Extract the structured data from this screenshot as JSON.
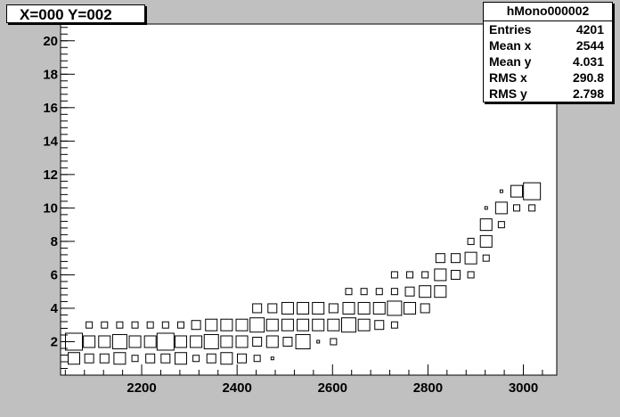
{
  "title": "X=000 Y=002",
  "stats": {
    "name": "hMono000002",
    "rows": [
      {
        "label": "Entries",
        "value": "4201"
      },
      {
        "label": "Mean x",
        "value": "2544"
      },
      {
        "label": "Mean y",
        "value": "4.031"
      },
      {
        "label": "RMS x",
        "value": "290.8"
      },
      {
        "label": "RMS y",
        "value": "2.798"
      }
    ]
  },
  "chart_data": {
    "type": "box",
    "xlim": [
      2030,
      3070
    ],
    "ylim": [
      0,
      21
    ],
    "xticks": [
      2200,
      2400,
      2600,
      2800,
      3000
    ],
    "yticks": [
      2,
      4,
      6,
      8,
      10,
      12,
      14,
      16,
      18,
      20
    ],
    "bin_width_x": 32,
    "bin_height_y": 1,
    "bins": [
      [
        2058,
        1,
        3
      ],
      [
        2090,
        1,
        2
      ],
      [
        2122,
        1,
        2
      ],
      [
        2154,
        1,
        3
      ],
      [
        2186,
        1,
        1
      ],
      [
        2218,
        1,
        2
      ],
      [
        2250,
        1,
        2
      ],
      [
        2282,
        1,
        3
      ],
      [
        2314,
        1,
        1
      ],
      [
        2346,
        1,
        2
      ],
      [
        2378,
        1,
        3
      ],
      [
        2410,
        1,
        2
      ],
      [
        2442,
        1,
        1
      ],
      [
        2474,
        1,
        0
      ],
      [
        2058,
        2,
        5
      ],
      [
        2090,
        2,
        3
      ],
      [
        2122,
        2,
        3
      ],
      [
        2154,
        2,
        4
      ],
      [
        2186,
        2,
        3
      ],
      [
        2218,
        2,
        3
      ],
      [
        2250,
        2,
        5
      ],
      [
        2282,
        2,
        3
      ],
      [
        2314,
        2,
        3
      ],
      [
        2346,
        2,
        4
      ],
      [
        2378,
        2,
        3
      ],
      [
        2410,
        2,
        3
      ],
      [
        2442,
        2,
        2
      ],
      [
        2474,
        2,
        3
      ],
      [
        2506,
        2,
        2
      ],
      [
        2538,
        2,
        4
      ],
      [
        2570,
        2,
        0
      ],
      [
        2602,
        2,
        1
      ],
      [
        2090,
        3,
        1
      ],
      [
        2122,
        3,
        1
      ],
      [
        2154,
        3,
        1
      ],
      [
        2186,
        3,
        1
      ],
      [
        2218,
        3,
        1
      ],
      [
        2250,
        3,
        1
      ],
      [
        2282,
        3,
        1
      ],
      [
        2314,
        3,
        2
      ],
      [
        2346,
        3,
        3
      ],
      [
        2378,
        3,
        3
      ],
      [
        2410,
        3,
        3
      ],
      [
        2442,
        3,
        4
      ],
      [
        2474,
        3,
        3
      ],
      [
        2506,
        3,
        3
      ],
      [
        2538,
        3,
        3
      ],
      [
        2570,
        3,
        3
      ],
      [
        2602,
        3,
        3
      ],
      [
        2634,
        3,
        4
      ],
      [
        2666,
        3,
        3
      ],
      [
        2698,
        3,
        2
      ],
      [
        2730,
        3,
        1
      ],
      [
        2442,
        4,
        2
      ],
      [
        2474,
        4,
        2
      ],
      [
        2506,
        4,
        3
      ],
      [
        2538,
        4,
        3
      ],
      [
        2570,
        4,
        3
      ],
      [
        2602,
        4,
        2
      ],
      [
        2634,
        4,
        3
      ],
      [
        2666,
        4,
        3
      ],
      [
        2698,
        4,
        3
      ],
      [
        2730,
        4,
        4
      ],
      [
        2762,
        4,
        3
      ],
      [
        2794,
        4,
        2
      ],
      [
        2634,
        5,
        1
      ],
      [
        2666,
        5,
        1
      ],
      [
        2698,
        5,
        1
      ],
      [
        2730,
        5,
        1
      ],
      [
        2762,
        5,
        2
      ],
      [
        2794,
        5,
        3
      ],
      [
        2826,
        5,
        3
      ],
      [
        2730,
        6,
        1
      ],
      [
        2762,
        6,
        1
      ],
      [
        2794,
        6,
        1
      ],
      [
        2826,
        6,
        3
      ],
      [
        2858,
        6,
        2
      ],
      [
        2890,
        6,
        1
      ],
      [
        2826,
        7,
        2
      ],
      [
        2858,
        7,
        2
      ],
      [
        2890,
        7,
        3
      ],
      [
        2922,
        7,
        1
      ],
      [
        2890,
        8,
        1
      ],
      [
        2922,
        8,
        3
      ],
      [
        2922,
        9,
        3
      ],
      [
        2954,
        9,
        1
      ],
      [
        2922,
        10,
        0
      ],
      [
        2954,
        10,
        3
      ],
      [
        2986,
        10,
        1
      ],
      [
        3018,
        10,
        1
      ],
      [
        2954,
        11,
        0
      ],
      [
        2986,
        11,
        3
      ],
      [
        3018,
        11,
        5
      ]
    ]
  }
}
